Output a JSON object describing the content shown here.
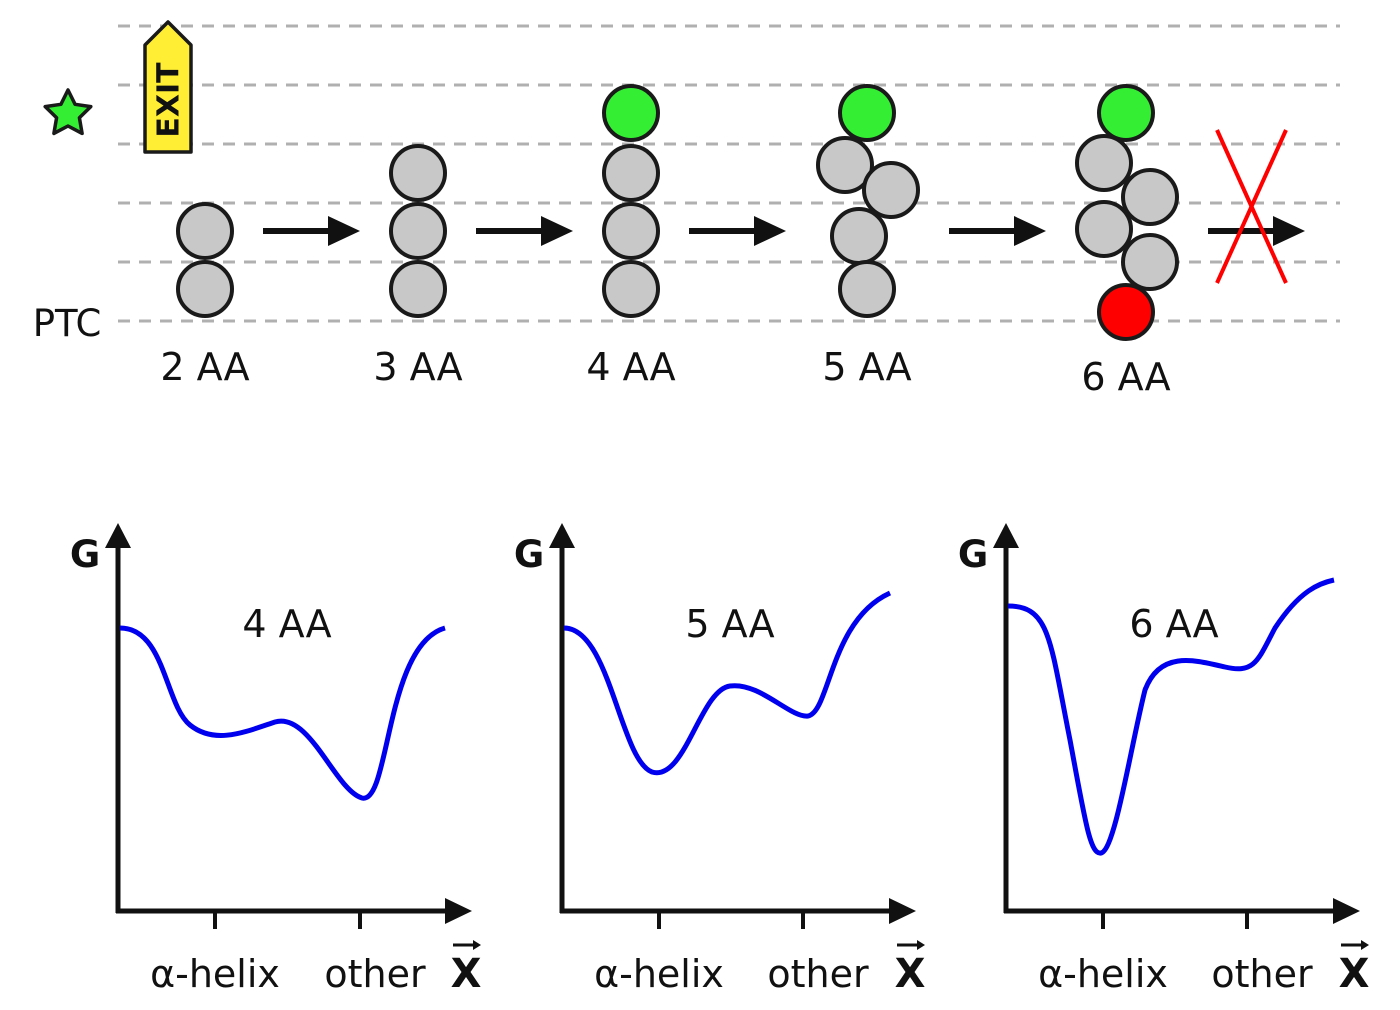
{
  "colors": {
    "bead": "#c8c8c8",
    "bead_stroke": "#1a1a1a",
    "green": "#33ee33",
    "red": "#ff0000",
    "exit_fill": "#ffee33",
    "curve": "#0000ee",
    "dash": "#b0b0b0",
    "cross": "#ff0000"
  },
  "top": {
    "ptc_label": "PTC",
    "exit_label": "EXIT",
    "star_icon": "star-icon",
    "stages": [
      {
        "label": "2 AA",
        "gray": 2,
        "green": 0,
        "red": 0
      },
      {
        "label": "3 AA",
        "gray": 3,
        "green": 0,
        "red": 0
      },
      {
        "label": "4 AA",
        "gray": 3,
        "green": 1,
        "red": 0
      },
      {
        "label": "5 AA",
        "gray": 4,
        "green": 1,
        "red": 0
      },
      {
        "label": "6 AA",
        "gray": 4,
        "green": 1,
        "red": 1
      }
    ]
  },
  "plots": [
    {
      "title": "4 AA",
      "y_axis": "G",
      "x_axis": "X",
      "tick_labels": [
        "α-helix",
        "other"
      ]
    },
    {
      "title": "5 AA",
      "y_axis": "G",
      "x_axis": "X",
      "tick_labels": [
        "α-helix",
        "other"
      ]
    },
    {
      "title": "6 AA",
      "y_axis": "G",
      "x_axis": "X",
      "tick_labels": [
        "α-helix",
        "other"
      ]
    }
  ]
}
